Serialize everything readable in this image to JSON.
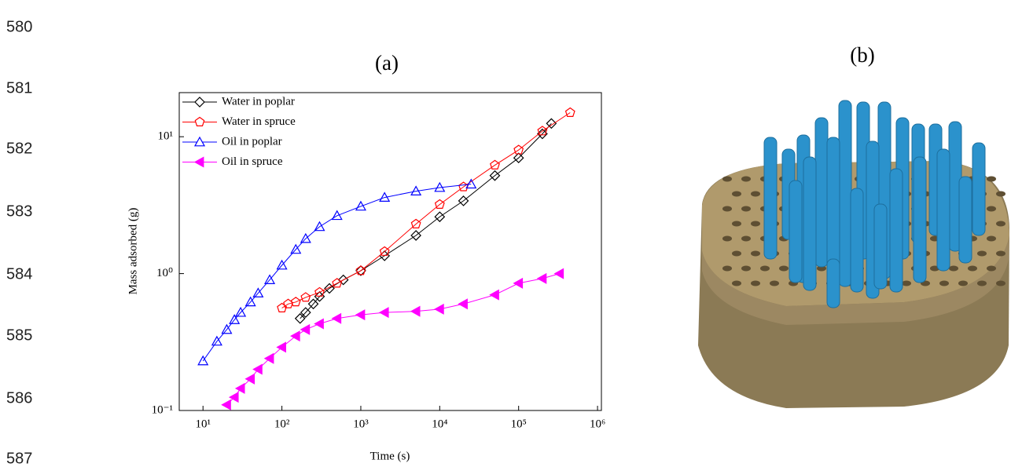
{
  "line_numbers": [
    "580",
    "581",
    "582",
    "583",
    "584",
    "585",
    "586",
    "587"
  ],
  "chart_data": {
    "type": "scatter",
    "title": "(a)",
    "x_label": "Time (s)",
    "y_label": "Mass adsorbed (g)",
    "xlog": true,
    "ylog": true,
    "xlim": [
      5,
      1120000
    ],
    "ylim": [
      0.1,
      21
    ],
    "xticks": [
      {
        "value": 10,
        "label": "10¹"
      },
      {
        "value": 100,
        "label": "10²"
      },
      {
        "value": 1000,
        "label": "10³"
      },
      {
        "value": 10000,
        "label": "10⁴"
      },
      {
        "value": 100000,
        "label": "10⁵"
      },
      {
        "value": 1000000,
        "label": "10⁶"
      }
    ],
    "yticks": [
      {
        "value": 0.1,
        "label": "10⁻¹"
      },
      {
        "value": 1,
        "label": "10⁰"
      },
      {
        "value": 10,
        "label": "10¹"
      }
    ],
    "legend": "upper left",
    "series": [
      {
        "name": "Water in poplar",
        "color": "#000000",
        "marker": "diamond",
        "filled": false,
        "x": [
          170,
          200,
          250,
          300,
          400,
          600,
          1000,
          2000,
          5000,
          10000,
          20000,
          50000,
          100000,
          200000,
          260000
        ],
        "values": [
          0.47,
          0.52,
          0.6,
          0.68,
          0.78,
          0.9,
          1.05,
          1.35,
          1.9,
          2.6,
          3.4,
          5.2,
          7,
          10.5,
          12.5
        ]
      },
      {
        "name": "Water in spruce",
        "color": "#ff0000",
        "marker": "pentagon",
        "filled": false,
        "x": [
          100,
          120,
          150,
          200,
          300,
          500,
          1000,
          2000,
          5000,
          10000,
          20000,
          50000,
          100000,
          200000,
          450000
        ],
        "values": [
          0.56,
          0.6,
          0.62,
          0.67,
          0.73,
          0.85,
          1.05,
          1.45,
          2.3,
          3.2,
          4.3,
          6.2,
          8,
          11,
          15
        ]
      },
      {
        "name": "Oil in poplar",
        "color": "#0000ff",
        "marker": "triangle-up",
        "filled": false,
        "x": [
          10,
          15,
          20,
          25,
          30,
          40,
          50,
          70,
          100,
          150,
          200,
          300,
          500,
          1000,
          2000,
          5000,
          10000,
          25000
        ],
        "values": [
          0.23,
          0.32,
          0.39,
          0.46,
          0.52,
          0.62,
          0.72,
          0.9,
          1.15,
          1.5,
          1.8,
          2.2,
          2.65,
          3.1,
          3.6,
          4.0,
          4.25,
          4.5
        ]
      },
      {
        "name": "Oil in spruce",
        "color": "#ff00ff",
        "marker": "triangle-left",
        "filled": true,
        "x": [
          20,
          25,
          30,
          40,
          50,
          70,
          100,
          150,
          200,
          300,
          500,
          1000,
          2000,
          5000,
          10000,
          20000,
          50000,
          100000,
          200000,
          330000
        ],
        "values": [
          0.11,
          0.125,
          0.145,
          0.17,
          0.2,
          0.24,
          0.29,
          0.35,
          0.39,
          0.43,
          0.47,
          0.5,
          0.52,
          0.53,
          0.55,
          0.6,
          0.7,
          0.85,
          0.92,
          1.0
        ]
      }
    ]
  },
  "panel_b": {
    "label": "(b)"
  }
}
